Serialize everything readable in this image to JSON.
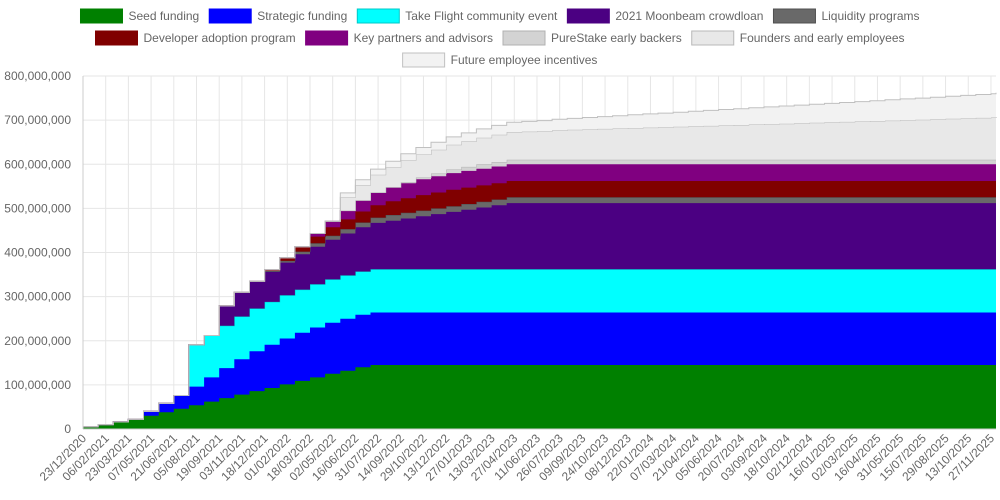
{
  "chart_data": {
    "type": "area",
    "stacked": true,
    "step": true,
    "title": "",
    "xlabel": "",
    "ylabel": "",
    "ylim": [
      0,
      800000000
    ],
    "yticks": [
      0,
      100000000,
      200000000,
      300000000,
      400000000,
      500000000,
      600000000,
      700000000,
      800000000
    ],
    "ytick_labels": [
      "0",
      "100,000,000",
      "200,000,000",
      "300,000,000",
      "400,000,000",
      "500,000,000",
      "600,000,000",
      "700,000,000",
      "800,000,000"
    ],
    "x_tick_labels": [
      "23/12/2020",
      "06/02/2021",
      "23/03/2021",
      "07/05/2021",
      "21/06/2021",
      "05/08/2021",
      "19/09/2021",
      "03/11/2021",
      "18/12/2021",
      "01/02/2022",
      "18/03/2022",
      "02/05/2022",
      "16/06/2022",
      "31/07/2022",
      "14/09/2022",
      "29/10/2022",
      "13/12/2022",
      "27/01/2023",
      "13/03/2023",
      "27/04/2023",
      "11/06/2023",
      "26/07/2023",
      "09/09/2023",
      "24/10/2023",
      "08/12/2023",
      "22/01/2024",
      "07/03/2024",
      "21/04/2024",
      "05/06/2024",
      "20/07/2024",
      "03/09/2024",
      "18/10/2024",
      "02/12/2024",
      "16/01/2025",
      "02/03/2025",
      "16/04/2025",
      "31/05/2025",
      "15/07/2025",
      "29/08/2025",
      "13/10/2025",
      "27/11/2025"
    ],
    "x_day_offsets": [
      0,
      30,
      60,
      90,
      120,
      150,
      180,
      210,
      240,
      270,
      300,
      330,
      360,
      390,
      420,
      450,
      480,
      510,
      540,
      570,
      600,
      630,
      660,
      690,
      720,
      750,
      780,
      810,
      840,
      870,
      900,
      930,
      960,
      990,
      1020,
      1050,
      1080,
      1110,
      1140,
      1170,
      1200,
      1230,
      1260,
      1290,
      1320,
      1350,
      1380,
      1410,
      1440,
      1470,
      1500,
      1530,
      1560,
      1590,
      1620,
      1650,
      1680,
      1710,
      1740,
      1770,
      1800,
      1810
    ],
    "x_day_range": [
      0,
      1810
    ],
    "legend_position": "top",
    "grid": true,
    "series": [
      {
        "name": "Seed funding",
        "color": "#008000",
        "border": "#008000",
        "values": [
          5000000,
          10000000,
          16000000,
          22000000,
          30000000,
          38000000,
          46000000,
          54000000,
          62000000,
          70000000,
          78000000,
          86000000,
          93000000,
          101000000,
          109000000,
          117000000,
          125000000,
          132000000,
          140000000,
          145000000,
          145000000,
          145000000,
          145000000,
          145000000,
          145000000,
          145000000,
          145000000,
          145000000,
          145000000,
          145000000,
          145000000,
          145000000,
          145000000,
          145000000,
          145000000,
          145000000,
          145000000,
          145000000,
          145000000,
          145000000,
          145000000,
          145000000,
          145000000,
          145000000,
          145000000,
          145000000,
          145000000,
          145000000,
          145000000,
          145000000,
          145000000,
          145000000,
          145000000,
          145000000,
          145000000,
          145000000,
          145000000,
          145000000,
          145000000,
          145000000,
          145000000,
          145000000
        ]
      },
      {
        "name": "Strategic funding",
        "color": "#0000ff",
        "border": "#0000ff",
        "values": [
          0,
          0,
          0,
          0,
          10000000,
          20000000,
          30000000,
          42000000,
          55000000,
          68000000,
          80000000,
          90000000,
          98000000,
          104000000,
          109000000,
          113000000,
          116000000,
          118000000,
          119000000,
          119000000,
          119000000,
          119000000,
          119000000,
          119000000,
          119000000,
          119000000,
          119000000,
          119000000,
          119000000,
          119000000,
          119000000,
          119000000,
          119000000,
          119000000,
          119000000,
          119000000,
          119000000,
          119000000,
          119000000,
          119000000,
          119000000,
          119000000,
          119000000,
          119000000,
          119000000,
          119000000,
          119000000,
          119000000,
          119000000,
          119000000,
          119000000,
          119000000,
          119000000,
          119000000,
          119000000,
          119000000,
          119000000,
          119000000,
          119000000,
          119000000,
          119000000,
          119000000
        ]
      },
      {
        "name": "Take Flight community event",
        "color": "#00ffff",
        "border": "#00c8c8",
        "values": [
          0,
          0,
          0,
          0,
          0,
          0,
          0,
          95000000,
          95000000,
          96000000,
          97000000,
          97000000,
          97000000,
          98000000,
          98000000,
          98000000,
          98000000,
          98000000,
          98000000,
          98000000,
          98000000,
          98000000,
          98000000,
          98000000,
          98000000,
          98000000,
          98000000,
          98000000,
          98000000,
          98000000,
          98000000,
          98000000,
          98000000,
          98000000,
          98000000,
          98000000,
          98000000,
          98000000,
          98000000,
          98000000,
          98000000,
          98000000,
          98000000,
          98000000,
          98000000,
          98000000,
          98000000,
          98000000,
          98000000,
          98000000,
          98000000,
          98000000,
          98000000,
          98000000,
          98000000,
          98000000,
          98000000,
          98000000,
          98000000,
          98000000,
          98000000,
          98000000
        ]
      },
      {
        "name": "2021 Moonbeam crowdloan",
        "color": "#4b0082",
        "border": "#4b0082",
        "values": [
          0,
          0,
          0,
          0,
          0,
          0,
          0,
          0,
          0,
          45000000,
          55000000,
          62000000,
          68000000,
          74000000,
          80000000,
          85000000,
          90000000,
          95000000,
          100000000,
          105000000,
          110000000,
          115000000,
          120000000,
          125000000,
          130000000,
          135000000,
          140000000,
          145000000,
          150000000,
          150000000,
          150000000,
          150000000,
          150000000,
          150000000,
          150000000,
          150000000,
          150000000,
          150000000,
          150000000,
          150000000,
          150000000,
          150000000,
          150000000,
          150000000,
          150000000,
          150000000,
          150000000,
          150000000,
          150000000,
          150000000,
          150000000,
          150000000,
          150000000,
          150000000,
          150000000,
          150000000,
          150000000,
          150000000,
          150000000,
          150000000,
          150000000,
          150000000
        ]
      },
      {
        "name": "Liquidity programs",
        "color": "#696969",
        "border": "#505050",
        "values": [
          0,
          0,
          0,
          0,
          0,
          0,
          0,
          0,
          0,
          0,
          0,
          0,
          2000000,
          4000000,
          6000000,
          8000000,
          9000000,
          10000000,
          11000000,
          12000000,
          13000000,
          13000000,
          13000000,
          13000000,
          13000000,
          13000000,
          13000000,
          13000000,
          13000000,
          13000000,
          13000000,
          13000000,
          13000000,
          13000000,
          13000000,
          13000000,
          13000000,
          13000000,
          13000000,
          13000000,
          13000000,
          13000000,
          13000000,
          13000000,
          13000000,
          13000000,
          13000000,
          13000000,
          13000000,
          13000000,
          13000000,
          13000000,
          13000000,
          13000000,
          13000000,
          13000000,
          13000000,
          13000000,
          13000000,
          13000000,
          13000000,
          13000000
        ]
      },
      {
        "name": "Developer adoption program",
        "color": "#800000",
        "border": "#800000",
        "values": [
          0,
          0,
          0,
          0,
          0,
          0,
          0,
          0,
          0,
          0,
          0,
          0,
          3000000,
          7000000,
          11000000,
          15000000,
          19000000,
          22000000,
          25000000,
          28000000,
          31000000,
          33000000,
          35000000,
          36000000,
          37000000,
          37000000,
          37000000,
          37000000,
          37000000,
          37000000,
          37000000,
          37000000,
          37000000,
          37000000,
          37000000,
          37000000,
          37000000,
          37000000,
          37000000,
          37000000,
          37000000,
          37000000,
          37000000,
          37000000,
          37000000,
          37000000,
          37000000,
          37000000,
          37000000,
          37000000,
          37000000,
          37000000,
          37000000,
          37000000,
          37000000,
          37000000,
          37000000,
          37000000,
          37000000,
          37000000,
          37000000,
          37000000
        ]
      },
      {
        "name": "Key partners and advisors",
        "color": "#800080",
        "border": "#800080",
        "values": [
          0,
          0,
          0,
          0,
          0,
          0,
          0,
          0,
          0,
          0,
          0,
          0,
          0,
          0,
          0,
          7000000,
          14000000,
          20000000,
          25000000,
          29000000,
          32000000,
          34000000,
          36000000,
          37000000,
          38000000,
          38000000,
          38000000,
          38000000,
          38000000,
          38000000,
          38000000,
          38000000,
          38000000,
          38000000,
          38000000,
          38000000,
          38000000,
          38000000,
          38000000,
          38000000,
          38000000,
          38000000,
          38000000,
          38000000,
          38000000,
          38000000,
          38000000,
          38000000,
          38000000,
          38000000,
          38000000,
          38000000,
          38000000,
          38000000,
          38000000,
          38000000,
          38000000,
          38000000,
          38000000,
          38000000,
          38000000,
          38000000
        ]
      },
      {
        "name": "PureStake early backers",
        "color": "#d3d3d3",
        "border": "#b0b0b0",
        "values": [
          0,
          0,
          0,
          0,
          0,
          0,
          0,
          0,
          0,
          0,
          0,
          0,
          0,
          0,
          0,
          0,
          0,
          0,
          0,
          0,
          0,
          2000000,
          4000000,
          6000000,
          8000000,
          9000000,
          10000000,
          10000000,
          10000000,
          10000000,
          10000000,
          10000000,
          10000000,
          10000000,
          10000000,
          10000000,
          10000000,
          10000000,
          10000000,
          10000000,
          10000000,
          10000000,
          10000000,
          10000000,
          10000000,
          10000000,
          10000000,
          10000000,
          10000000,
          10000000,
          10000000,
          10000000,
          10000000,
          10000000,
          10000000,
          10000000,
          10000000,
          10000000,
          10000000,
          10000000,
          10000000,
          10000000
        ]
      },
      {
        "name": "Founders and early employees",
        "color": "#e8e8e8",
        "border": "#b8b8b8",
        "values": [
          0,
          0,
          0,
          0,
          0,
          0,
          0,
          0,
          0,
          0,
          0,
          0,
          0,
          0,
          0,
          0,
          0,
          30000000,
          35000000,
          40000000,
          45000000,
          50000000,
          52000000,
          54000000,
          56000000,
          58000000,
          60000000,
          62000000,
          63000000,
          64000000,
          65000000,
          67000000,
          68000000,
          69000000,
          70000000,
          71000000,
          72000000,
          73000000,
          74000000,
          75000000,
          76000000,
          77000000,
          78000000,
          79000000,
          80000000,
          81000000,
          82000000,
          83000000,
          84000000,
          85000000,
          86000000,
          87000000,
          88000000,
          89000000,
          90000000,
          91000000,
          92000000,
          93000000,
          94000000,
          95000000,
          96000000,
          97000000
        ]
      },
      {
        "name": "Future employee incentives",
        "color": "#f2f2f2",
        "border": "#c0c0c0",
        "values": [
          0,
          0,
          0,
          0,
          0,
          0,
          0,
          0,
          0,
          0,
          0,
          0,
          0,
          0,
          0,
          0,
          0,
          10000000,
          12000000,
          13000000,
          14000000,
          15000000,
          16000000,
          17000000,
          18000000,
          19000000,
          20000000,
          21000000,
          22000000,
          23000000,
          24000000,
          25000000,
          26000000,
          27000000,
          28000000,
          29000000,
          30000000,
          31000000,
          32000000,
          33000000,
          34000000,
          35000000,
          36000000,
          37000000,
          38000000,
          39000000,
          40000000,
          41000000,
          42000000,
          43000000,
          44000000,
          45000000,
          46000000,
          47000000,
          48000000,
          49000000,
          50000000,
          51000000,
          52000000,
          53000000,
          54000000,
          55000000
        ]
      }
    ]
  }
}
